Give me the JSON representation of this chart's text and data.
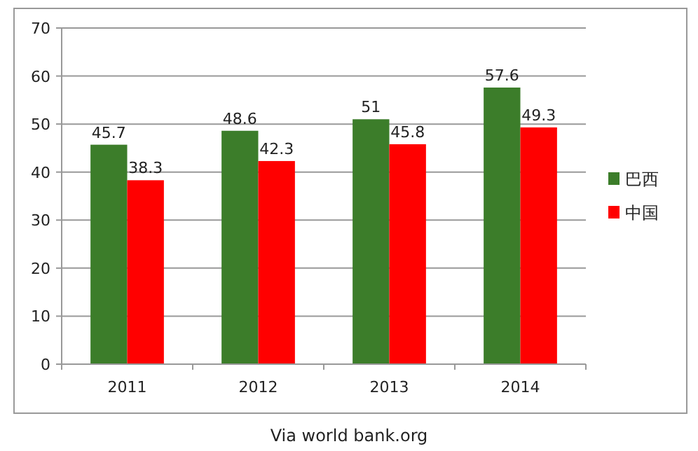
{
  "chart_data": {
    "type": "bar",
    "categories": [
      "2011",
      "2012",
      "2013",
      "2014"
    ],
    "series": [
      {
        "name": "巴西",
        "color": "#3c7d2a",
        "values": [
          45.7,
          48.6,
          51,
          57.6
        ]
      },
      {
        "name": "中国",
        "color": "#ff0000",
        "values": [
          38.3,
          42.3,
          45.8,
          49.3
        ]
      }
    ],
    "ylim": [
      0,
      70
    ],
    "yticks": [
      0,
      10,
      20,
      30,
      40,
      50,
      60,
      70
    ],
    "grid": "y",
    "legend": "right",
    "data_labels": true,
    "annotations": [
      "Via world bank.org"
    ]
  }
}
